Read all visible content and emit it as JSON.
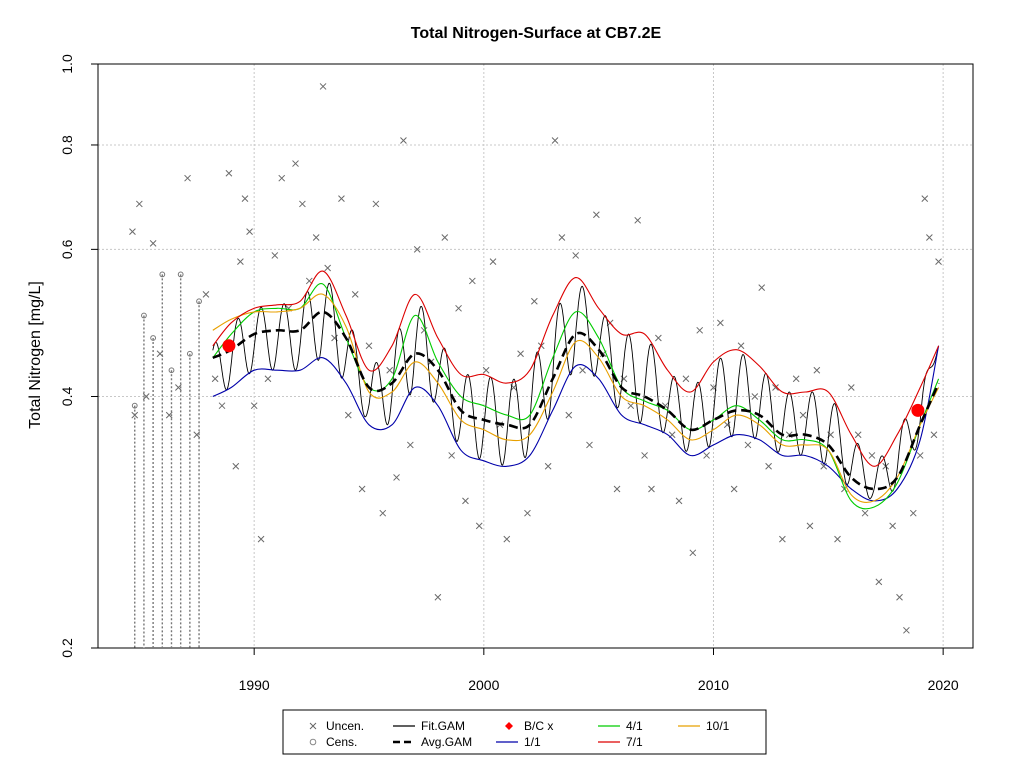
{
  "chart_data": {
    "type": "line",
    "title": "Total Nitrogen-Surface at CB7.2E",
    "xlabel": "",
    "ylabel": "Total Nitrogen [mg/L]",
    "xlim": [
      1983.2,
      2021.3
    ],
    "ylim": [
      0.2,
      1.0
    ],
    "y_scale": "log",
    "x_ticks": [
      "1990",
      "2000",
      "2010",
      "2020"
    ],
    "y_ticks": [
      "0.2",
      "0.4",
      "0.6",
      "0.8",
      "1.0"
    ],
    "grid": true,
    "legend_position": "bottom",
    "legend": [
      {
        "label": "Uncen.",
        "symbol": "x",
        "color": "#666666"
      },
      {
        "label": "Cens.",
        "symbol": "circle",
        "color": "#888888"
      },
      {
        "label": "Fit.GAM",
        "symbol": "line",
        "color": "#000000"
      },
      {
        "label": "Avg.GAM",
        "symbol": "dashed",
        "color": "#000000"
      },
      {
        "label": "B/C x",
        "symbol": "diamond",
        "color": "#ff0000"
      },
      {
        "label": "1/1",
        "symbol": "line",
        "color": "#0000aa"
      },
      {
        "label": "4/1",
        "symbol": "line",
        "color": "#00cc00"
      },
      {
        "label": "7/1",
        "symbol": "line",
        "color": "#dd0000"
      },
      {
        "label": "10/1",
        "symbol": "line",
        "color": "#e8a000"
      }
    ],
    "series": [
      {
        "name": "Avg.GAM",
        "color": "#000000",
        "x": [
          1988.2,
          1989,
          1990,
          1991,
          1992,
          1993,
          1994,
          1995,
          1996,
          1997,
          1998,
          1999,
          2000,
          2001,
          2002,
          2003,
          2004,
          2005,
          2006,
          2007,
          2008,
          2009,
          2010,
          2011,
          2012,
          2013,
          2014,
          2015,
          2016,
          2017,
          2018,
          2019,
          2019.8
        ],
        "y": [
          0.445,
          0.455,
          0.475,
          0.48,
          0.48,
          0.505,
          0.47,
          0.41,
          0.415,
          0.45,
          0.43,
          0.385,
          0.375,
          0.37,
          0.37,
          0.42,
          0.475,
          0.455,
          0.41,
          0.4,
          0.385,
          0.365,
          0.375,
          0.385,
          0.38,
          0.36,
          0.36,
          0.35,
          0.32,
          0.31,
          0.32,
          0.37,
          0.415
        ]
      },
      {
        "name": "1/1",
        "color": "#0000aa",
        "x": [
          1988.2,
          1989,
          1990,
          1991,
          1992,
          1993,
          1994,
          1995,
          1996,
          1997,
          1998,
          1999,
          2000,
          2001,
          2002,
          2003,
          2004,
          2005,
          2006,
          2007,
          2008,
          2009,
          2010,
          2011,
          2012,
          2013,
          2014,
          2015,
          2016,
          2017,
          2018,
          2019,
          2019.8
        ],
        "y": [
          0.4,
          0.41,
          0.43,
          0.43,
          0.43,
          0.445,
          0.415,
          0.37,
          0.37,
          0.41,
          0.39,
          0.345,
          0.335,
          0.33,
          0.34,
          0.385,
          0.435,
          0.42,
          0.38,
          0.37,
          0.36,
          0.34,
          0.35,
          0.36,
          0.355,
          0.34,
          0.34,
          0.33,
          0.31,
          0.3,
          0.31,
          0.355,
          0.46
        ]
      },
      {
        "name": "4/1",
        "color": "#00cc00",
        "x": [
          1988.2,
          1989,
          1990,
          1991,
          1992,
          1993,
          1994,
          1995,
          1996,
          1997,
          1998,
          1999,
          2000,
          2001,
          2002,
          2003,
          2004,
          2005,
          2006,
          2007,
          2008,
          2009,
          2010,
          2011,
          2012,
          2013,
          2014,
          2015,
          2016,
          2017,
          2018,
          2019,
          2019.8
        ],
        "y": [
          0.445,
          0.475,
          0.505,
          0.51,
          0.51,
          0.545,
          0.47,
          0.41,
          0.42,
          0.5,
          0.44,
          0.4,
          0.39,
          0.38,
          0.38,
          0.445,
          0.505,
          0.47,
          0.41,
          0.395,
          0.385,
          0.365,
          0.375,
          0.39,
          0.375,
          0.355,
          0.355,
          0.345,
          0.3,
          0.295,
          0.315,
          0.37,
          0.42
        ]
      },
      {
        "name": "7/1",
        "color": "#dd0000",
        "x": [
          1988.2,
          1989,
          1990,
          1991,
          1992,
          1993,
          1994,
          1995,
          1996,
          1997,
          1998,
          1999,
          2000,
          2001,
          2002,
          2003,
          2004,
          2005,
          2006,
          2007,
          2008,
          2009,
          2010,
          2011,
          2012,
          2013,
          2014,
          2015,
          2016,
          2017,
          2018,
          2019,
          2019.8
        ],
        "y": [
          0.46,
          0.49,
          0.51,
          0.515,
          0.52,
          0.565,
          0.5,
          0.43,
          0.46,
          0.53,
          0.47,
          0.425,
          0.425,
          0.415,
          0.43,
          0.5,
          0.555,
          0.51,
          0.475,
          0.475,
          0.43,
          0.405,
          0.44,
          0.455,
          0.435,
          0.405,
          0.405,
          0.405,
          0.36,
          0.33,
          0.36,
          0.41,
          0.46
        ]
      },
      {
        "name": "10/1",
        "color": "#e8a000",
        "x": [
          1988.2,
          1989,
          1990,
          1991,
          1992,
          1993,
          1994,
          1995,
          1996,
          1997,
          1998,
          1999,
          2000,
          2001,
          2002,
          2003,
          2004,
          2005,
          2006,
          2007,
          2008,
          2009,
          2010,
          2011,
          2012,
          2013,
          2014,
          2015,
          2016,
          2017,
          2018,
          2019,
          2019.8
        ],
        "y": [
          0.48,
          0.495,
          0.505,
          0.505,
          0.51,
          0.53,
          0.485,
          0.405,
          0.405,
          0.44,
          0.415,
          0.375,
          0.365,
          0.355,
          0.36,
          0.405,
          0.465,
          0.445,
          0.4,
          0.39,
          0.375,
          0.355,
          0.365,
          0.38,
          0.37,
          0.35,
          0.35,
          0.345,
          0.305,
          0.3,
          0.32,
          0.37,
          0.41
        ]
      },
      {
        "name": "B/C x",
        "color": "#ff0000",
        "x": [
          1988.9,
          2018.9
        ],
        "y": [
          0.46,
          0.385
        ]
      }
    ],
    "observations_uncensored": {
      "x": [
        1984.7,
        1984.8,
        1985.0,
        1985.3,
        1985.6,
        1985.9,
        1986.3,
        1986.7,
        1987.1,
        1987.5,
        1987.9,
        1988.3,
        1988.6,
        1988.9,
        1989.2,
        1989.4,
        1989.6,
        1989.8,
        1990.0,
        1990.3,
        1990.6,
        1990.9,
        1991.2,
        1991.5,
        1991.8,
        1992.1,
        1992.4,
        1992.7,
        1993.0,
        1993.2,
        1993.5,
        1993.8,
        1994.1,
        1994.4,
        1994.7,
        1995.0,
        1995.3,
        1995.6,
        1995.9,
        1996.2,
        1996.5,
        1996.8,
        1997.1,
        1997.4,
        1997.7,
        1998.0,
        1998.3,
        1998.6,
        1998.9,
        1999.2,
        1999.5,
        1999.8,
        2000.1,
        2000.4,
        2000.7,
        2001.0,
        2001.3,
        2001.6,
        2001.9,
        2002.2,
        2002.5,
        2002.8,
        2003.1,
        2003.4,
        2003.7,
        2004.0,
        2004.3,
        2004.6,
        2004.9,
        2005.2,
        2005.5,
        2005.8,
        2006.1,
        2006.4,
        2006.7,
        2007.0,
        2007.3,
        2007.6,
        2007.9,
        2008.2,
        2008.5,
        2008.8,
        2009.1,
        2009.4,
        2009.7,
        2010.0,
        2010.3,
        2010.6,
        2010.9,
        2011.2,
        2011.5,
        2011.8,
        2012.1,
        2012.4,
        2012.7,
        2013.0,
        2013.3,
        2013.6,
        2013.9,
        2014.2,
        2014.5,
        2014.8,
        2015.1,
        2015.4,
        2015.7,
        2016.0,
        2016.3,
        2016.6,
        2016.9,
        2017.2,
        2017.5,
        2017.8,
        2018.1,
        2018.4,
        2018.7,
        2019.0,
        2019.2,
        2019.4,
        2019.6,
        2019.8
      ],
      "y": [
        0.63,
        0.38,
        0.68,
        0.4,
        0.61,
        0.45,
        0.38,
        0.41,
        0.73,
        0.36,
        0.53,
        0.42,
        0.39,
        0.74,
        0.33,
        0.58,
        0.69,
        0.63,
        0.39,
        0.27,
        0.42,
        0.59,
        0.73,
        0.51,
        0.76,
        0.68,
        0.55,
        0.62,
        0.94,
        0.57,
        0.47,
        0.69,
        0.38,
        0.53,
        0.31,
        0.46,
        0.68,
        0.29,
        0.43,
        0.32,
        0.81,
        0.35,
        0.6,
        0.48,
        0.44,
        0.23,
        0.62,
        0.34,
        0.51,
        0.3,
        0.55,
        0.28,
        0.43,
        0.58,
        0.37,
        0.27,
        0.41,
        0.45,
        0.29,
        0.52,
        0.46,
        0.33,
        0.81,
        0.62,
        0.38,
        0.59,
        0.43,
        0.35,
        0.66,
        0.45,
        0.49,
        0.31,
        0.42,
        0.39,
        0.65,
        0.34,
        0.31,
        0.47,
        0.39,
        0.36,
        0.3,
        0.42,
        0.26,
        0.48,
        0.34,
        0.41,
        0.49,
        0.37,
        0.31,
        0.46,
        0.35,
        0.4,
        0.54,
        0.33,
        0.41,
        0.27,
        0.36,
        0.42,
        0.38,
        0.28,
        0.43,
        0.33,
        0.36,
        0.27,
        0.31,
        0.41,
        0.36,
        0.29,
        0.34,
        0.24,
        0.33,
        0.28,
        0.23,
        0.21,
        0.29,
        0.34,
        0.69,
        0.62,
        0.36,
        0.58
      ]
    },
    "observations_censored": {
      "x": [
        1984.8,
        1985.2,
        1985.6,
        1986.0,
        1986.4,
        1986.8,
        1987.2,
        1987.6
      ],
      "y": [
        0.39,
        0.5,
        0.47,
        0.56,
        0.43,
        0.56,
        0.45,
        0.52
      ]
    }
  }
}
